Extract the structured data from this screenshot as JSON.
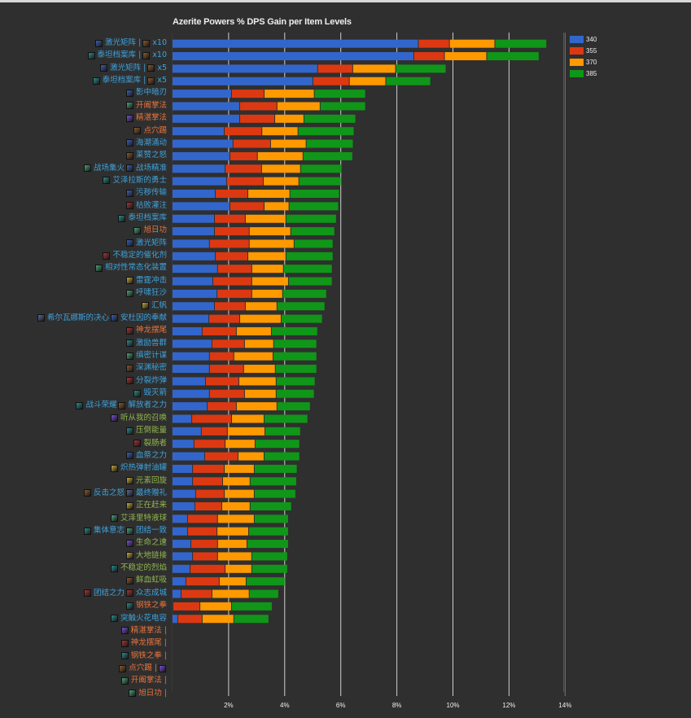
{
  "chart_data": {
    "type": "bar",
    "orientation": "horizontal",
    "stacked": true,
    "title": "Azerite Powers % DPS Gain per Item Levels",
    "xlabel": "",
    "ylabel": "",
    "xlim": [
      0,
      14
    ],
    "xticks": [
      "2%",
      "4%",
      "6%",
      "8%",
      "10%",
      "12%",
      "14%"
    ],
    "xtick_values": [
      2,
      4,
      6,
      8,
      10,
      12,
      14
    ],
    "grid": true,
    "legend_position": "top-right",
    "series_colors": [
      "#3366cc",
      "#dc3912",
      "#ff9900",
      "#109618"
    ],
    "series_names": [
      "340",
      "355",
      "370",
      "385"
    ],
    "categories": [
      {
        "parts": [
          {
            "icon": "laser-matrix-icon",
            "text": "激光矩阵 | "
          },
          {
            "icon": "essence-icon",
            "text": "x10"
          }
        ],
        "color": "blue"
      },
      {
        "parts": [
          {
            "icon": "titan-archive-icon",
            "text": "泰坦档案库 | "
          },
          {
            "icon": "essence-icon",
            "text": "x10"
          }
        ],
        "color": "blue"
      },
      {
        "parts": [
          {
            "icon": "laser-matrix-icon",
            "text": "激光矩阵 | "
          },
          {
            "icon": "essence-icon",
            "text": "x5"
          }
        ],
        "color": "blue"
      },
      {
        "parts": [
          {
            "icon": "titan-archive-icon",
            "text": "泰坦档案库 | "
          },
          {
            "icon": "essence-icon",
            "text": "x5"
          }
        ],
        "color": "blue"
      },
      {
        "parts": [
          {
            "icon": "shadow-blade-icon",
            "text": "影中暗刃"
          }
        ],
        "color": "blue"
      },
      {
        "parts": [
          {
            "icon": "open-palm-icon",
            "text": "开阖掌法"
          }
        ],
        "color": "orange"
      },
      {
        "parts": [
          {
            "icon": "glory-palm-icon",
            "text": "精湛掌法"
          }
        ],
        "color": "orange"
      },
      {
        "parts": [
          {
            "icon": "pressure-point-icon",
            "text": "点穴踢"
          }
        ],
        "color": "orange"
      },
      {
        "parts": [
          {
            "icon": "tidal-surge-icon",
            "text": "海潮涌动"
          }
        ],
        "color": "blue"
      },
      {
        "parts": [
          {
            "icon": "laser-wrath-icon",
            "text": "莱赞之怒"
          }
        ],
        "color": "blue"
      },
      {
        "parts": [
          {
            "icon": "battlefield-focus-icon",
            "text": "战场集火 "
          },
          {
            "icon": "battlefield-precision-icon",
            "text": "战场精准"
          }
        ],
        "color": "blue"
      },
      {
        "parts": [
          {
            "icon": "champion-icon",
            "text": "艾泽拉斯的勇士"
          }
        ],
        "color": "blue"
      },
      {
        "parts": [
          {
            "icon": "filthy-transfusion-icon",
            "text": "污秽传输"
          }
        ],
        "color": "blue"
      },
      {
        "parts": [
          {
            "icon": "blight-infusion-icon",
            "text": "枯败灌注"
          }
        ],
        "color": "blue"
      },
      {
        "parts": [
          {
            "icon": "titan-archive-icon",
            "text": "泰坦档案库"
          }
        ],
        "color": "blue"
      },
      {
        "parts": [
          {
            "icon": "rising-sun-icon",
            "text": "旭日功"
          }
        ],
        "color": "orange"
      },
      {
        "parts": [
          {
            "icon": "laser-matrix-icon",
            "text": "激光矩阵"
          }
        ],
        "color": "blue"
      },
      {
        "parts": [
          {
            "icon": "unstable-catalyst-icon",
            "text": "不稳定的催化剂"
          }
        ],
        "color": "blue"
      },
      {
        "parts": [
          {
            "icon": "normalizer-icon",
            "text": "相对性常态化装置"
          }
        ],
        "color": "blue"
      },
      {
        "parts": [
          {
            "icon": "thunder-icon",
            "text": "雷霆冲击"
          }
        ],
        "color": "blue"
      },
      {
        "parts": [
          {
            "icon": "sandstorm-icon",
            "text": "呼啸狂沙"
          }
        ],
        "color": "blue"
      },
      {
        "parts": [
          {
            "icon": "gutripper-sail-icon",
            "text": "汇帆"
          }
        ],
        "color": "blue"
      },
      {
        "parts": [
          {
            "icon": "sylvanas-icon",
            "text": "希尔瓦娜斯的决心 "
          },
          {
            "icon": "anduin-icon",
            "text": "安杜因的奉献"
          }
        ],
        "color": "blue"
      },
      {
        "parts": [
          {
            "icon": "dragon-tail-icon",
            "text": "神龙摆尾"
          }
        ],
        "color": "orange"
      },
      {
        "parts": [
          {
            "icon": "pack-icon",
            "text": "激励兽群"
          }
        ],
        "color": "blue"
      },
      {
        "parts": [
          {
            "icon": "scheme-icon",
            "text": "缜密计谋"
          }
        ],
        "color": "blue"
      },
      {
        "parts": [
          {
            "icon": "abyss-icon",
            "text": "深渊秘密"
          }
        ],
        "color": "blue"
      },
      {
        "parts": [
          {
            "icon": "bomb-icon",
            "text": "分裂炸弹"
          }
        ],
        "color": "blue"
      },
      {
        "parts": [
          {
            "icon": "arrow-icon",
            "text": "毁灭箭"
          }
        ],
        "color": "blue"
      },
      {
        "parts": [
          {
            "icon": "glory-icon",
            "text": "战斗荣耀 "
          },
          {
            "icon": "liberator-icon",
            "text": "解放者之力"
          }
        ],
        "color": "blue"
      },
      {
        "parts": [
          {
            "icon": "call-icon",
            "text": "听从我的召唤"
          }
        ],
        "color": "green"
      },
      {
        "parts": [
          {
            "icon": "overwhelming-icon",
            "text": "压倒能量"
          }
        ],
        "color": "green"
      },
      {
        "parts": [
          {
            "icon": "gutripper-icon",
            "text": "裂肠者"
          }
        ],
        "color": "green"
      },
      {
        "parts": [
          {
            "icon": "blood-rite-icon",
            "text": "血祭之力"
          }
        ],
        "color": "blue"
      },
      {
        "parts": [
          {
            "icon": "incendiary-icon",
            "text": "炽热弹射油罐"
          }
        ],
        "color": "blue"
      },
      {
        "parts": [
          {
            "icon": "elemental-whirl-icon",
            "text": "元素回旋"
          }
        ],
        "color": "green"
      },
      {
        "parts": [
          {
            "icon": "retort-icon",
            "text": "反击之怒 "
          },
          {
            "icon": "final-gift-icon",
            "text": "最终赠礼"
          }
        ],
        "color": "blue"
      },
      {
        "parts": [
          {
            "icon": "on-my-way-icon",
            "text": "正在赶来"
          }
        ],
        "color": "green"
      },
      {
        "parts": [
          {
            "icon": "globules-icon",
            "text": "艾泽里特液球"
          }
        ],
        "color": "green"
      },
      {
        "parts": [
          {
            "icon": "collective-will-icon",
            "text": "集体意志 "
          },
          {
            "icon": "unity-icon",
            "text": "团结一致"
          }
        ],
        "color": "blue"
      },
      {
        "parts": [
          {
            "icon": "life-speed-icon",
            "text": "生命之速"
          }
        ],
        "color": "green"
      },
      {
        "parts": [
          {
            "icon": "earthlink-icon",
            "text": "大地链接"
          }
        ],
        "color": "green"
      },
      {
        "parts": [
          {
            "icon": "unstable-flames-icon",
            "text": "不稳定的烈焰"
          }
        ],
        "color": "green"
      },
      {
        "parts": [
          {
            "icon": "blood-siphon-icon",
            "text": "鲜血虹吸"
          }
        ],
        "color": "green"
      },
      {
        "parts": [
          {
            "icon": "together-icon",
            "text": "团结之力 "
          },
          {
            "icon": "stand-as-one-icon",
            "text": "众志成城"
          }
        ],
        "color": "blue"
      },
      {
        "parts": [
          {
            "icon": "iron-fist-icon",
            "text": "钢铁之拳"
          }
        ],
        "color": "orange"
      },
      {
        "parts": [
          {
            "icon": "synapse-icon",
            "text": "突触火花电容"
          }
        ],
        "color": "blue"
      },
      {
        "parts": [
          {
            "icon": "glory-palm-icon",
            "text": "精湛掌法 |"
          }
        ],
        "color": "orange"
      },
      {
        "parts": [
          {
            "icon": "dragon-tail-icon",
            "text": "神龙摆尾 |"
          }
        ],
        "color": "orange"
      },
      {
        "parts": [
          {
            "icon": "iron-fist-icon",
            "text": "钢铁之拳 |"
          }
        ],
        "color": "orange"
      },
      {
        "parts": [
          {
            "icon": "pressure-point-icon",
            "text": "点穴踢 | "
          },
          {
            "icon": "trait-icon",
            "text": ""
          }
        ],
        "color": "orange"
      },
      {
        "parts": [
          {
            "icon": "open-palm-icon",
            "text": "开阖掌法 |"
          }
        ],
        "color": "orange"
      },
      {
        "parts": [
          {
            "icon": "rising-sun-icon",
            "text": "旭日功 |"
          }
        ],
        "color": "orange"
      }
    ],
    "series": [
      {
        "name": "340",
        "values": [
          8.75,
          8.59,
          5.16,
          4.99,
          2.09,
          2.38,
          2.38,
          1.83,
          2.14,
          2.03,
          1.86,
          1.91,
          1.51,
          2.03,
          1.48,
          1.48,
          1.3,
          1.51,
          1.59,
          1.42,
          1.57,
          1.48,
          1.28,
          1.04,
          1.39,
          1.3,
          1.3,
          1.16,
          1.3,
          1.22,
          0.67,
          1.01,
          0.75,
          1.13,
          0.7,
          0.7,
          0.81,
          0.78,
          0.52,
          0.52,
          0.64,
          0.7,
          0.61,
          0.46,
          0.29,
          0.0,
          0.17,
          null,
          null,
          null,
          null,
          null,
          null
        ]
      },
      {
        "name": "355",
        "values": [
          1.11,
          1.09,
          1.25,
          1.3,
          1.16,
          1.33,
          1.25,
          1.34,
          1.34,
          0.98,
          1.3,
          1.31,
          1.16,
          1.22,
          1.1,
          1.24,
          1.42,
          1.16,
          1.22,
          1.39,
          1.24,
          1.1,
          1.1,
          1.22,
          1.16,
          0.87,
          1.22,
          1.19,
          1.25,
          1.04,
          1.42,
          0.93,
          1.11,
          1.19,
          1.13,
          1.07,
          1.02,
          0.96,
          1.07,
          1.05,
          0.95,
          0.89,
          1.25,
          1.19,
          1.1,
          0.96,
          0.87,
          null,
          null,
          null,
          null,
          null,
          null
        ]
      },
      {
        "name": "370",
        "values": [
          1.62,
          1.51,
          1.53,
          1.3,
          1.79,
          1.54,
          1.04,
          1.29,
          1.27,
          1.63,
          1.39,
          1.27,
          1.5,
          0.89,
          1.45,
          1.48,
          1.6,
          1.36,
          1.13,
          1.31,
          1.1,
          1.13,
          1.48,
          1.25,
          1.04,
          1.4,
          1.13,
          1.33,
          1.13,
          1.45,
          1.16,
          1.34,
          1.07,
          0.93,
          1.07,
          0.98,
          1.07,
          1.01,
          1.31,
          1.13,
          1.05,
          1.22,
          0.95,
          0.96,
          1.33,
          1.13,
          1.13,
          null,
          null,
          null,
          null,
          null,
          null
        ]
      },
      {
        "name": "385",
        "values": [
          1.85,
          1.87,
          1.8,
          1.6,
          1.83,
          1.62,
          1.85,
          2.0,
          1.68,
          1.77,
          1.48,
          1.51,
          1.77,
          1.77,
          1.8,
          1.57,
          1.39,
          1.68,
          1.74,
          1.56,
          1.57,
          1.71,
          1.47,
          1.65,
          1.54,
          1.56,
          1.48,
          1.39,
          1.36,
          1.19,
          1.56,
          1.27,
          1.59,
          1.27,
          1.53,
          1.66,
          1.48,
          1.48,
          1.22,
          1.42,
          1.48,
          1.28,
          1.28,
          1.39,
          1.05,
          1.45,
          1.25,
          null,
          null,
          null,
          null,
          null,
          null
        ]
      }
    ]
  }
}
